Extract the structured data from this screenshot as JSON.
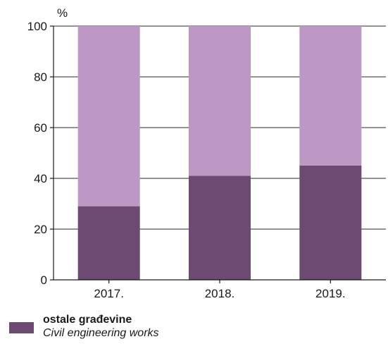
{
  "chart_data": {
    "type": "bar",
    "stacked": true,
    "categories": [
      "2017.",
      "2018.",
      "2019."
    ],
    "series": [
      {
        "name": "ostale građevine / Civil engineering works",
        "values": [
          29,
          41,
          45
        ],
        "color": "#6d4a72"
      },
      {
        "values": [
          71,
          59,
          55
        ],
        "color": "#bd98c4"
      }
    ],
    "ylabel": "%",
    "ylim": [
      0,
      100
    ],
    "yticks": [
      0,
      20,
      40,
      60,
      80,
      100
    ],
    "grid": true,
    "legend_position": "bottom-left"
  },
  "legend": {
    "label_hr": "ostale građevine",
    "label_en": "Civil engineering works"
  }
}
